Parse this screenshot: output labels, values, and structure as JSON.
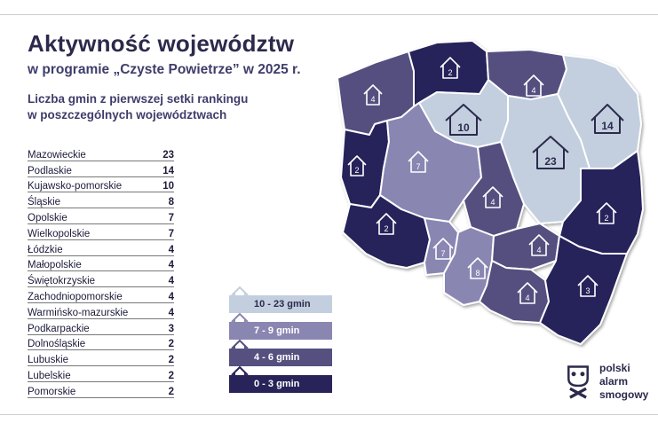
{
  "title": "Aktywność województw",
  "subtitle": "w programie „Czyste Powietrze” w 2025 r.",
  "caption": {
    "line1": "Liczba gmin z pierwszej setki rankingu",
    "line2": "w poszczególnych województwach"
  },
  "ranking": [
    {
      "name": "Mazowieckie",
      "value": "23"
    },
    {
      "name": "Podlaskie",
      "value": "14"
    },
    {
      "name": "Kujawsko-pomorskie",
      "value": "10"
    },
    {
      "name": "Śląskie",
      "value": "8"
    },
    {
      "name": "Opolskie",
      "value": "7"
    },
    {
      "name": "Wielkopolskie",
      "value": "7"
    },
    {
      "name": "Łódzkie",
      "value": "4"
    },
    {
      "name": "Małopolskie",
      "value": "4"
    },
    {
      "name": "Świętokrzyskie",
      "value": "4"
    },
    {
      "name": "Zachodniopomorskie",
      "value": "4"
    },
    {
      "name": "Warmińsko-mazurskie",
      "value": "4"
    },
    {
      "name": "Podkarpackie",
      "value": "3"
    },
    {
      "name": "Dolnośląskie",
      "value": "2"
    },
    {
      "name": "Lubuskie",
      "value": "2"
    },
    {
      "name": "Lubelskie",
      "value": "2"
    },
    {
      "name": "Pomorskie",
      "value": "2"
    }
  ],
  "legend": [
    {
      "label": "10 - 23 gmin",
      "color": "#c3cfdf",
      "text_color": "#2b2a4c"
    },
    {
      "label": "7 - 9 gmin",
      "color": "#8a86b2",
      "text_color": "#ffffff"
    },
    {
      "label": "4 - 6 gmin",
      "color": "#55507f",
      "text_color": "#ffffff"
    },
    {
      "label": "0 - 3 gmin",
      "color": "#28245a",
      "text_color": "#ffffff"
    }
  ],
  "map_labels": {
    "pomorskie": "2",
    "zachodniopomorskie": "4",
    "warminsko_mazurskie": "4",
    "kujawsko_pomorskie": "10",
    "podlaskie": "14",
    "lubuskie": "2",
    "wielkopolskie": "7",
    "mazowieckie": "23",
    "lodzkie": "4",
    "dolnoslaskie": "2",
    "lubelskie": "2",
    "opolskie": "7",
    "slaskie": "8",
    "swietokrzyskie": "4",
    "malopolskie": "4",
    "podkarpackie": "3"
  },
  "logo": {
    "line1": "polski",
    "line2": "alarm",
    "line3": "smogowy"
  }
}
